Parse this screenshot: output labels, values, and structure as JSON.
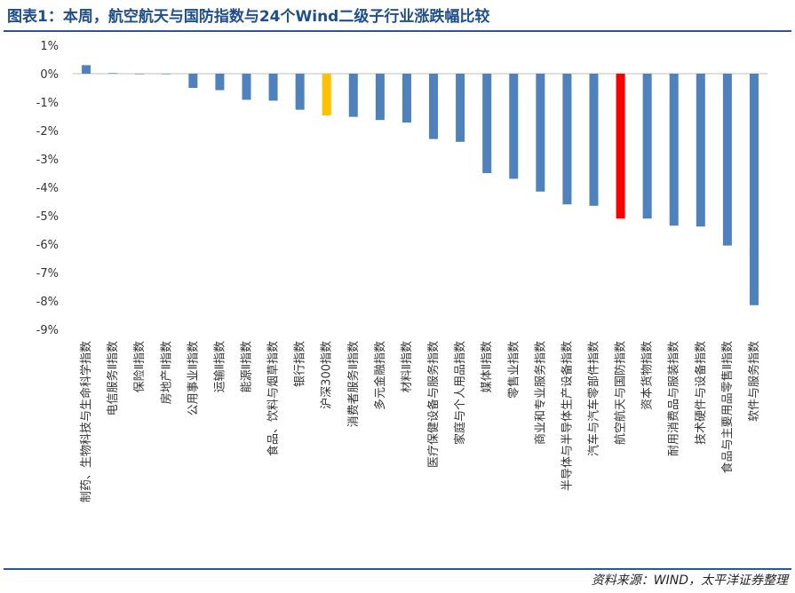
{
  "title": "图表1：本周，航空航天与国防指数与24个Wind二级子行业涨跌幅比较",
  "source": "资料来源：WIND，太平洋证券整理",
  "colors": {
    "default": "#4f81bd",
    "benchmark": "#ffc000",
    "highlight": "#ff0000"
  },
  "chart_data": {
    "type": "bar",
    "ylim": [
      -9,
      1
    ],
    "yticks": [
      "1%",
      "0%",
      "-1%",
      "-2%",
      "-3%",
      "-4%",
      "-5%",
      "-6%",
      "-7%",
      "-8%",
      "-9%"
    ],
    "categories": [
      "制药、生物科技与生命科学指数",
      "电信服务Ⅱ指数",
      "保险Ⅱ指数",
      "房地产Ⅱ指数",
      "公用事业Ⅱ指数",
      "运输Ⅱ指数",
      "能源Ⅱ指数",
      "食品、饮料与烟草指数",
      "银行指数",
      "沪深300指数",
      "消费者服务Ⅱ指数",
      "多元金融指数",
      "材料Ⅱ指数",
      "医疗保健设备与服务指数",
      "家庭与个人用品指数",
      "媒体Ⅱ指数",
      "零售业指数",
      "商业和专业服务指数",
      "半导体与半导体生产设备指数",
      "汽车与汽车零部件指数",
      "航空航天与国防指数",
      "资本货物指数",
      "耐用消费品与服装指数",
      "技术硬件与设备指数",
      "食品与主要用品零售Ⅱ指数",
      "软件与服务指数"
    ],
    "values": [
      0.3,
      0.02,
      0.0,
      0.0,
      -0.5,
      -0.58,
      -0.92,
      -0.95,
      -1.27,
      -1.47,
      -1.52,
      -1.63,
      -1.72,
      -2.3,
      -2.4,
      -3.5,
      -3.7,
      -4.15,
      -4.6,
      -4.65,
      -5.1,
      -5.1,
      -5.35,
      -5.38,
      -6.05,
      -8.15
    ],
    "benchmark_index": 9,
    "highlight_index": 20
  }
}
